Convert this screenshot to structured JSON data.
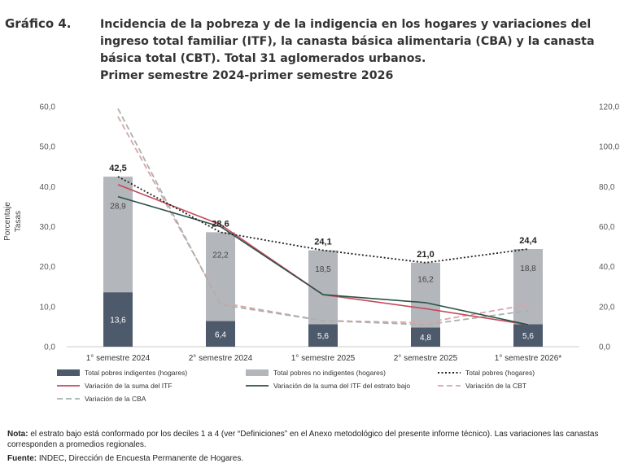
{
  "figure": {
    "label": "Gráfico 4.",
    "title_line1": "Incidencia de la pobreza y de la indigencia en los hogares y variaciones del ingreso total familiar (ITF), la canasta básica alimentaria (CBA) y la canasta básica total (CBT). Total 31 aglomerados urbanos.",
    "title_line2": "Primer semestre 2024-primer semestre 2026"
  },
  "chart_data": {
    "type": "bar",
    "stacked": true,
    "categories": [
      "1° semestre 2024",
      "2° semestre 2024",
      "1° semestre 2025",
      "2° semestre 2025",
      "1° semestre 2026*"
    ],
    "y_left": {
      "label_line1": "Porcentaje",
      "label_line2": "Tasas",
      "min": 0,
      "max": 60,
      "ticks": [
        "0,0",
        "10,0",
        "20,0",
        "30,0",
        "40,0",
        "50,0",
        "60,0"
      ]
    },
    "y_right": {
      "min": 0,
      "max": 120,
      "ticks": [
        "0,0",
        "20,0",
        "40,0",
        "60,0",
        "80,0",
        "100,0",
        "120,0"
      ]
    },
    "grid": false,
    "series": [
      {
        "name": "Total pobres indigentes (hogares)",
        "kind": "bar",
        "axis": "left",
        "color": "#4d5a6b",
        "values": [
          13.6,
          6.4,
          5.6,
          4.8,
          5.6
        ],
        "labels": [
          "13,6",
          "6,4",
          "5,6",
          "4,8",
          "5,6"
        ]
      },
      {
        "name": "Total pobres no indigentes (hogares)",
        "kind": "bar",
        "axis": "left",
        "color": "#b3b6ba",
        "values": [
          28.9,
          22.2,
          18.5,
          16.2,
          18.8
        ],
        "labels": [
          "28,9",
          "22,2",
          "18,5",
          "16,2",
          "18,8"
        ]
      },
      {
        "name": "Total pobres (hogares)",
        "kind": "line",
        "axis": "left",
        "color": "#222222",
        "dash": "2,2.5",
        "values": [
          42.5,
          28.6,
          24.1,
          21.0,
          24.4
        ],
        "labels": [
          "42,5",
          "28,6",
          "24,1",
          "21,0",
          "24,4"
        ]
      },
      {
        "name": "Variación de la suma del ITF",
        "kind": "line",
        "axis": "right",
        "color": "#c44a5a",
        "values": [
          81,
          61,
          26,
          19,
          11
        ]
      },
      {
        "name": "Variación de la suma del ITF del estrato bajo",
        "kind": "line",
        "axis": "right",
        "color": "#2c5146",
        "values": [
          75,
          60,
          26,
          22,
          11
        ]
      },
      {
        "name": "Variación de la CBT",
        "kind": "line",
        "axis": "right",
        "color": "#d9a5ab",
        "dash": "7,4",
        "values": [
          115,
          22,
          13,
          12,
          21
        ]
      },
      {
        "name": "Variación de la CBA",
        "kind": "line",
        "axis": "right",
        "color": "#a7b3ad",
        "dash": "7,4",
        "values": [
          119,
          21,
          13,
          11,
          18
        ]
      }
    ],
    "legend_position": "bottom"
  },
  "notes": {
    "note_label": "Nota:",
    "note_text": " el estrato bajo está conformado por los deciles 1 a 4 (ver “Definiciones” en el Anexo metodológico del presente informe técnico). Las variaciones las canastas corresponden a promedios regionales.",
    "source_label": "Fuente:",
    "source_text": " INDEC, Dirección de Encuesta Permanente de Hogares."
  }
}
